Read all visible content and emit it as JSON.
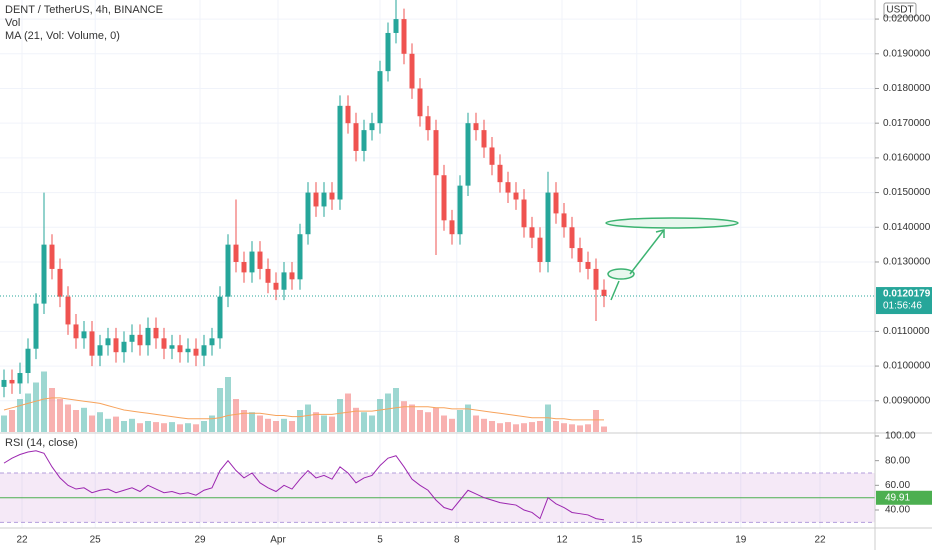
{
  "chart_data": {
    "type": "candlestick",
    "title": "DENT / TetherUS, 4h, BINANCE",
    "volume_label": "Vol",
    "ma_label": "MA (21, Vol: Volume, 0)",
    "rsi_label": "RSI (14, close)",
    "currency": "USDT",
    "up_color": "#26a69a",
    "down_color": "#ef5350",
    "ma_color": "#f7a35c",
    "rsi_color": "#9c27b0",
    "xlim": [
      -0.5,
      108.875
    ],
    "xticks": [
      {
        "value": 2.25,
        "label": "22"
      },
      {
        "value": 11.4,
        "label": "25"
      },
      {
        "value": 24.5,
        "label": "29"
      },
      {
        "value": 34.25,
        "label": "Apr"
      },
      {
        "value": 47,
        "label": "5"
      },
      {
        "value": 56.6,
        "label": "8"
      },
      {
        "value": 69.75,
        "label": "12"
      },
      {
        "value": 79.1,
        "label": "15"
      },
      {
        "value": 92.1,
        "label": "19"
      },
      {
        "value": 102,
        "label": "22"
      }
    ],
    "ylim": [
      0.0081,
      0.02055
    ],
    "yticks": [
      {
        "value": 0.009,
        "label": "0.0090000"
      },
      {
        "value": 0.01,
        "label": "0.0100000"
      },
      {
        "value": 0.011,
        "label": "0.0110000"
      },
      {
        "value": 0.013,
        "label": "0.0130000"
      },
      {
        "value": 0.014,
        "label": "0.0140000"
      },
      {
        "value": 0.015,
        "label": "0.0150000"
      },
      {
        "value": 0.016,
        "label": "0.0160000"
      },
      {
        "value": 0.017,
        "label": "0.0170000"
      },
      {
        "value": 0.018,
        "label": "0.0180000"
      },
      {
        "value": 0.019,
        "label": "0.0190000"
      },
      {
        "value": 0.02,
        "label": "0.0200000"
      }
    ],
    "open": [
      0.0094,
      0.0096,
      0.0095,
      0.0098,
      0.0105,
      0.0118,
      0.0135,
      0.0128,
      0.012,
      0.0112,
      0.0108,
      0.011,
      0.0103,
      0.0106,
      0.0108,
      0.0104,
      0.0107,
      0.0109,
      0.0106,
      0.0111,
      0.0108,
      0.0105,
      0.0106,
      0.0104,
      0.0105,
      0.0103,
      0.0106,
      0.0108,
      0.012,
      0.0135,
      0.013,
      0.0127,
      0.0133,
      0.0128,
      0.0124,
      0.0122,
      0.0127,
      0.0125,
      0.0138,
      0.015,
      0.0146,
      0.015,
      0.0148,
      0.0175,
      0.017,
      0.0162,
      0.0168,
      0.017,
      0.0185,
      0.0196,
      0.02,
      0.019,
      0.018,
      0.0172,
      0.0168,
      0.0155,
      0.0142,
      0.0138,
      0.0152,
      0.017,
      0.0168,
      0.0163,
      0.0158,
      0.0153,
      0.015,
      0.0148,
      0.014,
      0.0137,
      0.013,
      0.015,
      0.0144,
      0.014,
      0.0134,
      0.013,
      0.0128,
      0.0122
    ],
    "high": [
      0.0099,
      0.0099,
      0.0101,
      0.0108,
      0.0121,
      0.015,
      0.0138,
      0.0131,
      0.0123,
      0.0115,
      0.0113,
      0.0113,
      0.0109,
      0.0111,
      0.0111,
      0.011,
      0.0112,
      0.0112,
      0.0114,
      0.0114,
      0.0111,
      0.0109,
      0.0109,
      0.0108,
      0.0108,
      0.0109,
      0.0111,
      0.0123,
      0.0138,
      0.0148,
      0.0133,
      0.0136,
      0.0136,
      0.0131,
      0.0127,
      0.013,
      0.013,
      0.0141,
      0.0153,
      0.0153,
      0.0153,
      0.0153,
      0.0178,
      0.0178,
      0.0173,
      0.0171,
      0.0173,
      0.0188,
      0.0199,
      0.0206,
      0.0203,
      0.0193,
      0.0183,
      0.0175,
      0.0171,
      0.0158,
      0.0145,
      0.0155,
      0.0173,
      0.0173,
      0.0171,
      0.0166,
      0.0161,
      0.0156,
      0.0153,
      0.0151,
      0.0143,
      0.014,
      0.0156,
      0.0153,
      0.0147,
      0.0143,
      0.0137,
      0.0133,
      0.0131,
      0.0125
    ],
    "low": [
      0.0091,
      0.0092,
      0.0092,
      0.0095,
      0.0102,
      0.0115,
      0.0125,
      0.0117,
      0.0109,
      0.0105,
      0.0105,
      0.01,
      0.01,
      0.0103,
      0.0101,
      0.0101,
      0.0104,
      0.0103,
      0.0103,
      0.0105,
      0.0102,
      0.0102,
      0.0101,
      0.0101,
      0.01,
      0.01,
      0.0103,
      0.0105,
      0.0117,
      0.0127,
      0.0124,
      0.0124,
      0.0125,
      0.0121,
      0.0119,
      0.0119,
      0.0122,
      0.0122,
      0.0135,
      0.0143,
      0.0143,
      0.0145,
      0.0145,
      0.0167,
      0.0159,
      0.0159,
      0.0165,
      0.0167,
      0.0182,
      0.0193,
      0.0187,
      0.0177,
      0.0169,
      0.0165,
      0.0132,
      0.0139,
      0.0135,
      0.0135,
      0.0149,
      0.0165,
      0.016,
      0.0155,
      0.015,
      0.0147,
      0.0145,
      0.0137,
      0.0134,
      0.0127,
      0.0127,
      0.0141,
      0.0137,
      0.0131,
      0.0127,
      0.0125,
      0.0113,
      0.0117
    ],
    "close": [
      0.0096,
      0.0095,
      0.0098,
      0.0105,
      0.0118,
      0.0135,
      0.0128,
      0.012,
      0.0112,
      0.0108,
      0.011,
      0.0103,
      0.0106,
      0.0108,
      0.0104,
      0.0107,
      0.0109,
      0.0106,
      0.0111,
      0.0108,
      0.0105,
      0.0106,
      0.0104,
      0.0105,
      0.0103,
      0.0106,
      0.0108,
      0.012,
      0.0135,
      0.013,
      0.0127,
      0.0133,
      0.0128,
      0.0124,
      0.0122,
      0.0127,
      0.0125,
      0.0138,
      0.015,
      0.0146,
      0.015,
      0.0148,
      0.0175,
      0.017,
      0.0162,
      0.0168,
      0.017,
      0.0185,
      0.0196,
      0.02,
      0.019,
      0.018,
      0.0172,
      0.0168,
      0.0155,
      0.0142,
      0.0138,
      0.0152,
      0.017,
      0.0168,
      0.0163,
      0.0158,
      0.0153,
      0.015,
      0.0148,
      0.014,
      0.0137,
      0.013,
      0.015,
      0.0144,
      0.014,
      0.0134,
      0.013,
      0.0128,
      0.0122,
      0.0120179
    ],
    "volume": [
      15,
      20,
      30,
      35,
      45,
      55,
      40,
      30,
      25,
      20,
      22,
      15,
      18,
      12,
      14,
      10,
      12,
      8,
      10,
      9,
      8,
      9,
      7,
      8,
      7,
      10,
      15,
      40,
      50,
      30,
      20,
      18,
      15,
      12,
      10,
      12,
      10,
      20,
      25,
      18,
      15,
      14,
      30,
      35,
      22,
      18,
      15,
      30,
      35,
      40,
      28,
      25,
      20,
      18,
      22,
      15,
      12,
      20,
      25,
      15,
      12,
      10,
      8,
      9,
      7,
      8,
      9,
      10,
      25,
      10,
      8,
      7,
      6,
      7,
      20,
      5
    ],
    "volume_ma": [
      20,
      22,
      24,
      26,
      28,
      30,
      31,
      31,
      30,
      29,
      28,
      27,
      26,
      24,
      22,
      20,
      19,
      18,
      17,
      16,
      15,
      14,
      13,
      12,
      12,
      12,
      12,
      13,
      15,
      16,
      17,
      17,
      17,
      16,
      15,
      15,
      14,
      14,
      15,
      16,
      16,
      16,
      17,
      18,
      19,
      19,
      19,
      20,
      21,
      22,
      23,
      23,
      23,
      23,
      22,
      22,
      21,
      21,
      21,
      20,
      19,
      18,
      17,
      16,
      15,
      14,
      13,
      13,
      13,
      12,
      12,
      11,
      11,
      11,
      11,
      11
    ],
    "last_price": 0.0120179,
    "countdown": "01:56:46",
    "rsi": [
      78,
      82,
      85,
      87,
      88,
      86,
      75,
      66,
      60,
      57,
      58,
      54,
      56,
      57,
      54,
      56,
      58,
      55,
      60,
      57,
      54,
      55,
      53,
      54,
      52,
      56,
      58,
      72,
      80,
      72,
      66,
      70,
      62,
      58,
      55,
      60,
      57,
      65,
      72,
      66,
      68,
      65,
      75,
      70,
      62,
      66,
      68,
      76,
      82,
      84,
      75,
      65,
      60,
      56,
      48,
      42,
      40,
      48,
      56,
      53,
      50,
      48,
      46,
      45,
      44,
      40,
      38,
      33,
      50,
      45,
      42,
      38,
      37,
      36,
      33,
      32
    ],
    "rsi_ylim": [
      25.4,
      100.8
    ],
    "rsi_yticks": [
      {
        "value": 100,
        "label": "100.00"
      },
      {
        "value": 80,
        "label": "80.00"
      },
      {
        "value": 60,
        "label": "60.00"
      },
      {
        "value": 40,
        "label": "40.00"
      }
    ],
    "rsi_upper": 70,
    "rsi_lower": 30,
    "rsi_level": 49.91
  }
}
